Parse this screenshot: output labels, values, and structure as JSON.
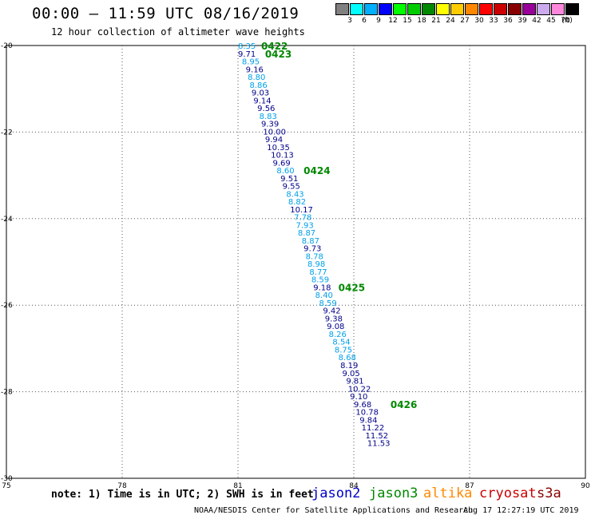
{
  "header": {
    "title": "00:00 – 11:59 UTC 08/16/2019",
    "subtitle": "12 hour collection of altimeter wave heights"
  },
  "legend": {
    "unit": "(ft)",
    "bins": [
      {
        "color": "#808080",
        "label": "3"
      },
      {
        "color": "#00ffff",
        "label": "6"
      },
      {
        "color": "#00b0ff",
        "label": "9"
      },
      {
        "color": "#0000ff",
        "label": "12"
      },
      {
        "color": "#00ff00",
        "label": "15"
      },
      {
        "color": "#00cc00",
        "label": "18"
      },
      {
        "color": "#008800",
        "label": "21"
      },
      {
        "color": "#ffff00",
        "label": "24"
      },
      {
        "color": "#ffcc00",
        "label": "27"
      },
      {
        "color": "#ff8800",
        "label": "30"
      },
      {
        "color": "#ff0000",
        "label": "33"
      },
      {
        "color": "#cc0000",
        "label": "36"
      },
      {
        "color": "#880000",
        "label": "39"
      },
      {
        "color": "#990099",
        "label": "42"
      },
      {
        "color": "#ccaaee",
        "label": "45"
      },
      {
        "color": "#ff88dd",
        "label": "70"
      },
      {
        "color": "#000000",
        "label": ""
      }
    ]
  },
  "axes": {
    "lon": {
      "min": 75,
      "max": 90,
      "ticks": [
        75,
        78,
        81,
        84,
        87,
        90
      ]
    },
    "lat": {
      "min": -30,
      "max": -20,
      "ticks": [
        -20,
        -22,
        -24,
        -26,
        -28,
        -30
      ]
    }
  },
  "colors": {
    "light": "#00a0e8",
    "dark": "#00008b",
    "time": "#008800"
  },
  "track": [
    {
      "lon": 81.0,
      "lat": -20.0,
      "v": "8.35",
      "c": "light"
    },
    {
      "lon": 81.0,
      "lat": -20.18,
      "v": "9.71",
      "c": "dark"
    },
    {
      "lon": 81.1,
      "lat": -20.36,
      "v": "8.95",
      "c": "light"
    },
    {
      "lon": 81.2,
      "lat": -20.54,
      "v": "9.16",
      "c": "dark"
    },
    {
      "lon": 81.25,
      "lat": -20.72,
      "v": "8.80",
      "c": "light"
    },
    {
      "lon": 81.3,
      "lat": -20.9,
      "v": "8.86",
      "c": "light"
    },
    {
      "lon": 81.35,
      "lat": -21.08,
      "v": "9.03",
      "c": "dark"
    },
    {
      "lon": 81.4,
      "lat": -21.26,
      "v": "9.14",
      "c": "dark"
    },
    {
      "lon": 81.5,
      "lat": -21.44,
      "v": "9.56",
      "c": "dark"
    },
    {
      "lon": 81.55,
      "lat": -21.62,
      "v": "8.83",
      "c": "light"
    },
    {
      "lon": 81.6,
      "lat": -21.8,
      "v": "9.39",
      "c": "dark"
    },
    {
      "lon": 81.65,
      "lat": -21.98,
      "v": "10.00",
      "c": "dark"
    },
    {
      "lon": 81.7,
      "lat": -22.16,
      "v": "9.94",
      "c": "dark"
    },
    {
      "lon": 81.75,
      "lat": -22.34,
      "v": "10.35",
      "c": "dark"
    },
    {
      "lon": 81.85,
      "lat": -22.52,
      "v": "10.13",
      "c": "dark"
    },
    {
      "lon": 81.9,
      "lat": -22.7,
      "v": "9.69",
      "c": "dark"
    },
    {
      "lon": 82.0,
      "lat": -22.88,
      "v": "8.60",
      "c": "light"
    },
    {
      "lon": 82.1,
      "lat": -23.06,
      "v": "9.51",
      "c": "dark"
    },
    {
      "lon": 82.15,
      "lat": -23.24,
      "v": "9.55",
      "c": "dark"
    },
    {
      "lon": 82.25,
      "lat": -23.42,
      "v": "8.43",
      "c": "light"
    },
    {
      "lon": 82.3,
      "lat": -23.6,
      "v": "8.82",
      "c": "light"
    },
    {
      "lon": 82.35,
      "lat": -23.78,
      "v": "10.17",
      "c": "dark"
    },
    {
      "lon": 82.45,
      "lat": -23.96,
      "v": "7.78",
      "c": "light"
    },
    {
      "lon": 82.5,
      "lat": -24.14,
      "v": "7.93",
      "c": "light"
    },
    {
      "lon": 82.55,
      "lat": -24.32,
      "v": "8.87",
      "c": "light"
    },
    {
      "lon": 82.65,
      "lat": -24.5,
      "v": "8.87",
      "c": "light"
    },
    {
      "lon": 82.7,
      "lat": -24.68,
      "v": "9.73",
      "c": "dark"
    },
    {
      "lon": 82.75,
      "lat": -24.86,
      "v": "8.78",
      "c": "light"
    },
    {
      "lon": 82.8,
      "lat": -25.04,
      "v": "8.98",
      "c": "light"
    },
    {
      "lon": 82.85,
      "lat": -25.22,
      "v": "8.77",
      "c": "light"
    },
    {
      "lon": 82.9,
      "lat": -25.4,
      "v": "8.59",
      "c": "light"
    },
    {
      "lon": 82.95,
      "lat": -25.58,
      "v": "9.18",
      "c": "dark"
    },
    {
      "lon": 83.0,
      "lat": -25.76,
      "v": "8.40",
      "c": "light"
    },
    {
      "lon": 83.1,
      "lat": -25.94,
      "v": "8.59",
      "c": "light"
    },
    {
      "lon": 83.2,
      "lat": -26.12,
      "v": "9.42",
      "c": "dark"
    },
    {
      "lon": 83.25,
      "lat": -26.3,
      "v": "9.38",
      "c": "dark"
    },
    {
      "lon": 83.3,
      "lat": -26.48,
      "v": "9.08",
      "c": "dark"
    },
    {
      "lon": 83.35,
      "lat": -26.66,
      "v": "8.26",
      "c": "light"
    },
    {
      "lon": 83.45,
      "lat": -26.84,
      "v": "8.54",
      "c": "light"
    },
    {
      "lon": 83.5,
      "lat": -27.02,
      "v": "8.75",
      "c": "light"
    },
    {
      "lon": 83.6,
      "lat": -27.2,
      "v": "8.68",
      "c": "light"
    },
    {
      "lon": 83.65,
      "lat": -27.38,
      "v": "8.19",
      "c": "dark"
    },
    {
      "lon": 83.7,
      "lat": -27.56,
      "v": "9.05",
      "c": "dark"
    },
    {
      "lon": 83.8,
      "lat": -27.74,
      "v": "9.81",
      "c": "dark"
    },
    {
      "lon": 83.85,
      "lat": -27.92,
      "v": "10.22",
      "c": "dark"
    },
    {
      "lon": 83.9,
      "lat": -28.1,
      "v": "9.10",
      "c": "dark"
    },
    {
      "lon": 84.0,
      "lat": -28.28,
      "v": "9.68",
      "c": "dark"
    },
    {
      "lon": 84.05,
      "lat": -28.46,
      "v": "10.78",
      "c": "dark"
    },
    {
      "lon": 84.15,
      "lat": -28.64,
      "v": "9.84",
      "c": "dark"
    },
    {
      "lon": 84.2,
      "lat": -28.82,
      "v": "11.22",
      "c": "dark"
    },
    {
      "lon": 84.3,
      "lat": -29.0,
      "v": "11.52",
      "c": "dark"
    },
    {
      "lon": 84.35,
      "lat": -29.18,
      "v": "11.53",
      "c": "dark"
    }
  ],
  "times": [
    {
      "lon": 81.6,
      "lat": -20.0,
      "t": "0422"
    },
    {
      "lon": 81.7,
      "lat": -20.18,
      "t": "0423"
    },
    {
      "lon": 82.7,
      "lat": -22.88,
      "t": "0424"
    },
    {
      "lon": 83.6,
      "lat": -25.58,
      "t": "0425"
    },
    {
      "lon": 84.95,
      "lat": -28.28,
      "t": "0426"
    }
  ],
  "footer": {
    "note": "note: 1) Time is in UTC; 2) SWH is in feet",
    "missions": [
      {
        "name": "jason2",
        "color": "#0000cc"
      },
      {
        "name": "jason3",
        "color": "#008800"
      },
      {
        "name": "altika",
        "color": "#ff8800"
      },
      {
        "name": "cryosat",
        "color": "#cc0000"
      },
      {
        "name": "s3a",
        "color": "#880000"
      }
    ],
    "credit": "NOAA/NESDIS Center for Satellite Applications and Research",
    "generated": "Aug 17 12:27:19 UTC 2019"
  }
}
